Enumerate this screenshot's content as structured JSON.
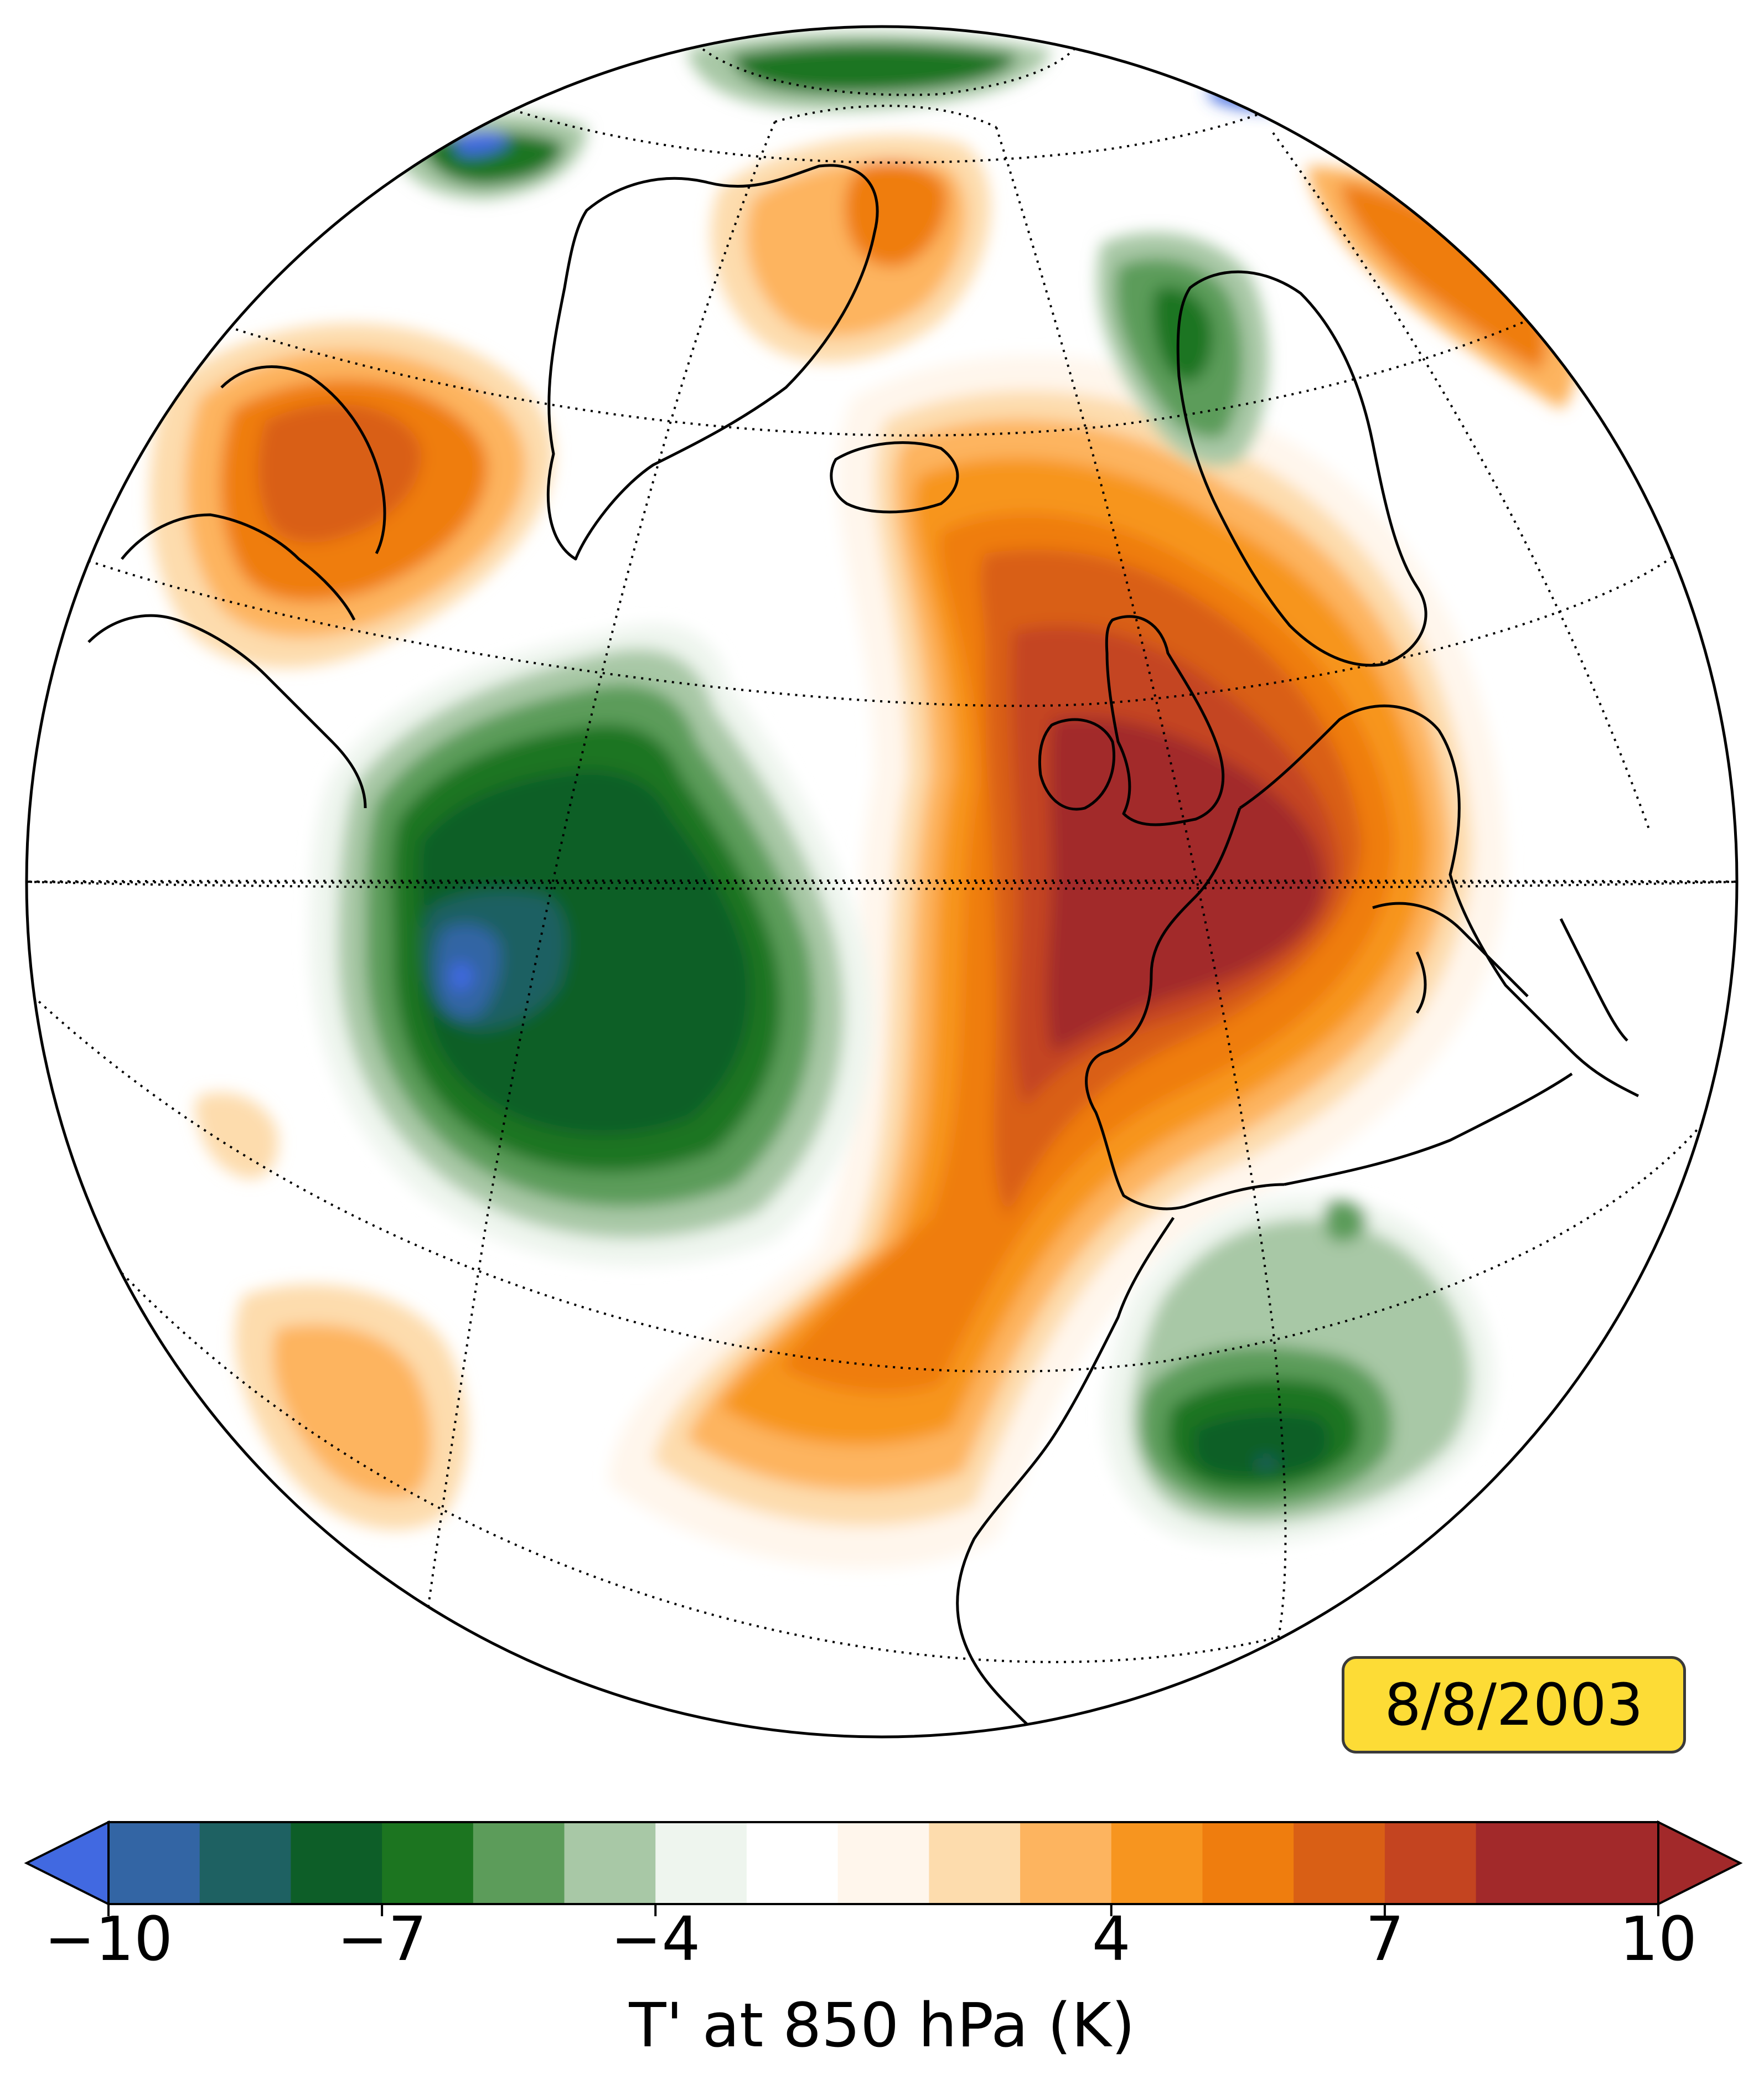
{
  "date_label": "8/8/2003",
  "colorbar": {
    "label": "T' at 850 hPa (K)",
    "ticks": [
      "−10",
      "−7",
      "−4",
      "4",
      "7",
      "10"
    ],
    "tick_values": [
      -10,
      -7,
      -4,
      4,
      7,
      10
    ],
    "range": [
      -11,
      11
    ],
    "extend": "both",
    "colors": [
      "#4169e1",
      "#3365a4",
      "#1e6162",
      "#0d5e28",
      "#1c7520",
      "#5c9c5a",
      "#a8c8a6",
      "#eef5ee",
      "#ffffff",
      "#fff6ec",
      "#fddcad",
      "#fdb45f",
      "#f7951f",
      "#ef7d0e",
      "#d95f15",
      "#c44420",
      "#a2292a"
    ],
    "level_bounds": [
      -10,
      -9,
      -8,
      -7,
      -6,
      -5,
      -4,
      -3,
      -2,
      2,
      3,
      4,
      5,
      6,
      7,
      8,
      9,
      10
    ]
  },
  "map": {
    "projection": "orthographic",
    "colors": {
      "outline": "#000000",
      "coastline": "#000000",
      "gridline": "#000000"
    }
  }
}
